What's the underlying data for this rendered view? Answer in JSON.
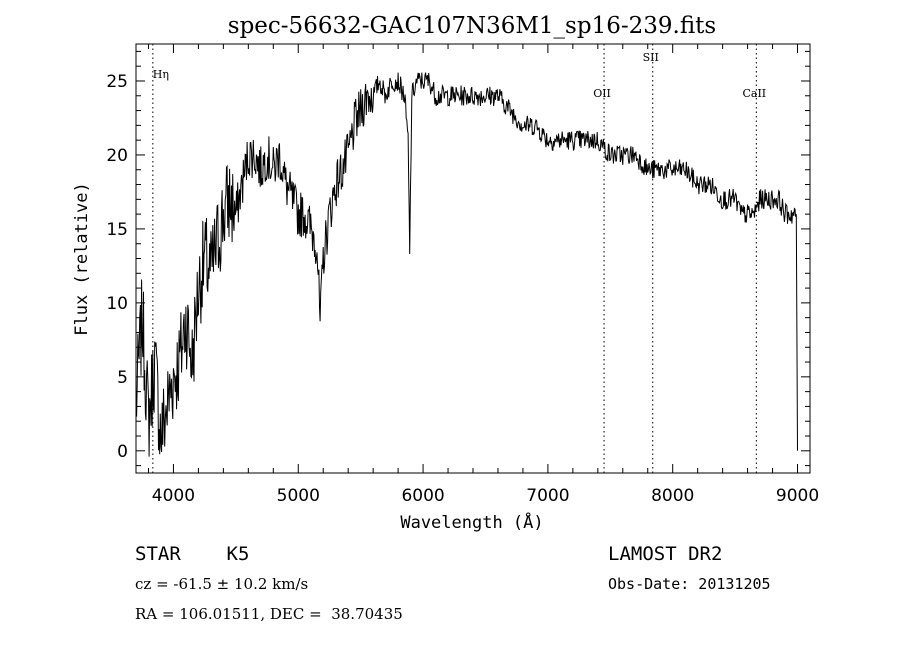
{
  "chart_data": {
    "type": "line",
    "title": "spec-56632-GAC107N36M1_sp16-239.fits",
    "xlabel": "Wavelength (Å)",
    "ylabel": "Flux (relative)",
    "xlim": [
      3700,
      9100
    ],
    "ylim": [
      -1.5,
      27.5
    ],
    "xticks": [
      4000,
      5000,
      6000,
      7000,
      8000,
      9000
    ],
    "yticks": [
      0,
      5,
      10,
      15,
      20,
      25
    ],
    "grid": false,
    "line_color": "#000000",
    "series": [
      {
        "x": [
          3700,
          3750,
          3800,
          3850,
          3900,
          3950,
          4000,
          4050,
          4100,
          4150,
          4200,
          4250,
          4300,
          4350,
          4400,
          4450,
          4500,
          4550,
          4600,
          4650,
          4700,
          4750,
          4800,
          4850,
          4900,
          4950,
          5000,
          5050,
          5100,
          5150,
          5175,
          5200,
          5250,
          5300,
          5350,
          5400,
          5450,
          5500,
          5550,
          5600,
          5650,
          5700,
          5750,
          5800,
          5850,
          5880,
          5893,
          5910,
          5950,
          6000,
          6050,
          6100,
          6150,
          6200,
          6300,
          6400,
          6500,
          6600,
          6700,
          6800,
          6900,
          7000,
          7100,
          7200,
          7300,
          7400,
          7500,
          7600,
          7700,
          7800,
          7850,
          7900,
          8000,
          8100,
          8200,
          8300,
          8400,
          8500,
          8550,
          8600,
          8650,
          8700,
          8750,
          8800,
          8850,
          8900,
          8950,
          8990,
          9000
        ],
        "y": [
          3,
          9,
          2,
          6,
          1,
          3,
          5,
          6,
          9,
          6,
          11,
          13,
          12,
          14,
          16,
          17,
          16,
          18,
          20,
          20,
          19,
          20,
          19,
          20,
          18,
          17,
          16,
          16,
          15,
          14,
          8.5,
          13,
          16,
          18,
          19,
          20,
          22,
          23,
          24,
          24,
          25,
          24,
          25,
          25,
          24,
          21,
          13.5,
          24,
          25,
          25,
          25,
          24,
          24,
          24,
          24,
          24,
          24,
          24,
          23,
          22,
          22,
          21,
          21,
          21,
          21,
          21,
          20,
          20,
          20,
          19,
          19,
          19,
          19,
          19,
          18,
          18,
          17,
          17,
          16,
          16,
          16,
          17,
          17,
          17,
          17,
          16,
          16,
          16,
          0
        ]
      }
    ],
    "annotations": [
      "Hη",
      "OII",
      "SII",
      "CaII"
    ],
    "line_positions": [
      3835,
      7450,
      7840,
      8670
    ]
  },
  "footer": {
    "left_line1": "STAR    K5",
    "left_line2": "cz = -61.5 ± 10.2 km/s",
    "left_line3": "RA = 106.01511, DEC =  38.70435",
    "right_line1": "LAMOST DR2",
    "right_line2": "Obs-Date: 20131205"
  }
}
